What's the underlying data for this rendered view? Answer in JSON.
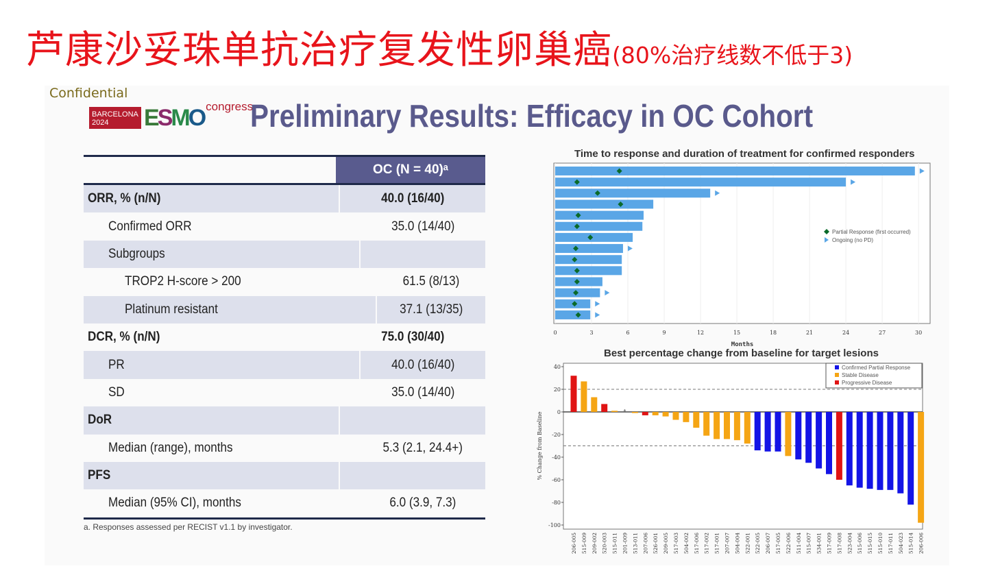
{
  "headline": {
    "main": "芦康沙妥珠单抗治疗复发性卵巢癌",
    "sub": "(80%治疗线数不低于3)"
  },
  "slide": {
    "confidential": "Confidential",
    "logo": {
      "city": "BARCELONA",
      "year": "2024",
      "brand": "ESMO",
      "suffix": "congress"
    },
    "title": "Preliminary Results: Efficacy in OC Cohort"
  },
  "table": {
    "header": "OC (N = 40)ᵃ",
    "rows": [
      {
        "label": "ORR, % (n/N)",
        "value": "40.0 (16/40)"
      },
      {
        "label": "Confirmed ORR",
        "value": "35.0 (14/40)"
      },
      {
        "label": "Subgroups",
        "value": ""
      },
      {
        "label": "TROP2 H-score > 200",
        "value": "61.5 (8/13)"
      },
      {
        "label": "Platinum resistant",
        "value": "37.1 (13/35)"
      },
      {
        "label": "DCR, % (n/N)",
        "value": "75.0 (30/40)"
      },
      {
        "label": "PR",
        "value": "40.0 (16/40)"
      },
      {
        "label": "SD",
        "value": "35.0 (14/40)"
      },
      {
        "label": "DoR",
        "value": ""
      },
      {
        "label": "Median (range), months",
        "value": "5.3 (2.1, 24.4+)"
      },
      {
        "label": "PFS",
        "value": ""
      },
      {
        "label": "Median (95% CI), months",
        "value": "6.0 (3.9, 7.3)"
      }
    ],
    "footnote": "a.  Responses assessed per RECIST v1.1 by investigator."
  },
  "chart_data": [
    {
      "type": "bar",
      "orientation": "horizontal",
      "title": "Time to response and duration of treatment for confirmed responders",
      "xlabel": "Months",
      "xlim": [
        0,
        30
      ],
      "xticks": [
        "0",
        "3",
        "6",
        "9",
        "12",
        "15",
        "18",
        "21",
        "24",
        "27",
        "30"
      ],
      "grid": true,
      "legend": {
        "placement": "right",
        "entries": [
          "Partial Response (first occurred)",
          "Ongoing (no PD)"
        ]
      },
      "duration_months": [
        29.7,
        24.0,
        12.8,
        8.1,
        7.3,
        7.2,
        6.4,
        5.6,
        5.5,
        5.5,
        3.9,
        3.7,
        2.9,
        2.9
      ],
      "partial_response_month": [
        5.3,
        1.8,
        3.5,
        5.4,
        1.9,
        1.8,
        2.9,
        1.7,
        1.6,
        1.8,
        1.8,
        1.7,
        1.6,
        1.9
      ],
      "ongoing": [
        true,
        true,
        true,
        false,
        false,
        false,
        false,
        true,
        false,
        false,
        false,
        true,
        true,
        true
      ],
      "colors": {
        "bar": "#5aa6e6",
        "marker": "#0a6a2a",
        "ongoing": "#5aa6e6"
      }
    },
    {
      "type": "bar",
      "title": "Best percentage change from baseline for target lesions",
      "ylabel": "% Change from Baseline",
      "ylim": [
        -100,
        40
      ],
      "yticks": [
        "40",
        "20",
        "0",
        "-20",
        "-40",
        "-60",
        "-80",
        "-100"
      ],
      "reference_lines": [
        20,
        -30
      ],
      "legend": {
        "placement": "top-right",
        "entries": [
          "Confirmed Partial Response",
          "Stable Disease",
          "Progressive Disease"
        ]
      },
      "colors": {
        "PR": "#1414e6",
        "SD": "#f5a514",
        "PD": "#e01414"
      },
      "categories": [
        "206-005",
        "515-009",
        "209-002",
        "520-003",
        "515-011",
        "201-009",
        "513-011",
        "207-006",
        "526-001",
        "209-005",
        "517-003",
        "504-002",
        "517-006",
        "517-002",
        "517-001",
        "207-007",
        "504-004",
        "522-001",
        "522-005",
        "206-007",
        "517-005",
        "522-006",
        "511-004",
        "515-007",
        "534-001",
        "517-009",
        "517-008",
        "523-004",
        "515-006",
        "515-015",
        "515-010",
        "517-011",
        "504-023",
        "515-014",
        "206-006"
      ],
      "values": [
        32,
        27,
        13,
        7,
        1,
        0,
        -1,
        -3,
        -3,
        -4,
        -7,
        -9,
        -14,
        -21,
        -24,
        -24,
        -25,
        -28,
        -34,
        -35,
        -35,
        -39,
        -42,
        -45,
        -50,
        -55,
        -60,
        -65,
        -67,
        -68,
        -69,
        -69,
        -72,
        -82,
        -98
      ],
      "response": [
        "PD",
        "SD",
        "SD",
        "PD",
        "SD",
        "*",
        "SD",
        "PD",
        "SD",
        "SD",
        "SD",
        "SD",
        "SD",
        "SD",
        "SD",
        "SD",
        "SD",
        "SD",
        "PR",
        "PR",
        "PR",
        "SD",
        "PR",
        "PR",
        "PR",
        "PR",
        "PD",
        "PR",
        "PR",
        "PR",
        "PR",
        "PR",
        "PR",
        "PR",
        "SD"
      ]
    }
  ]
}
